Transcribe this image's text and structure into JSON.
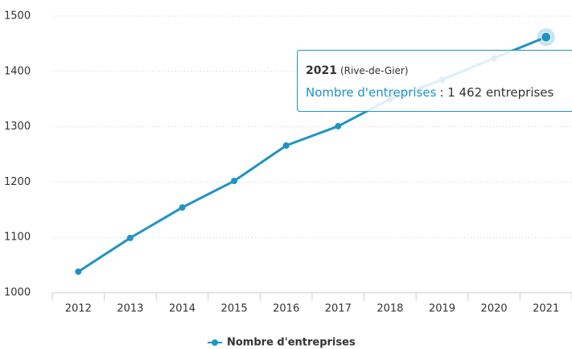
{
  "chart_data": {
    "type": "line",
    "categories": [
      "2012",
      "2013",
      "2014",
      "2015",
      "2016",
      "2017",
      "2018",
      "2019",
      "2020",
      "2021"
    ],
    "series": [
      {
        "name": "Nombre d'entreprises",
        "color": "#1f93c4",
        "values": [
          1038,
          1099,
          1154,
          1202,
          1266,
          1301,
          1350,
          1385,
          1424,
          1462
        ]
      }
    ],
    "ylim": [
      1000,
      1500
    ],
    "yticks": [
      1000,
      1100,
      1200,
      1300,
      1400,
      1500
    ],
    "grid": true,
    "legend": "bottom",
    "tooltip": {
      "place": "(Rive-de-Gier)",
      "text": ": 1 462 entreprises"
    }
  }
}
